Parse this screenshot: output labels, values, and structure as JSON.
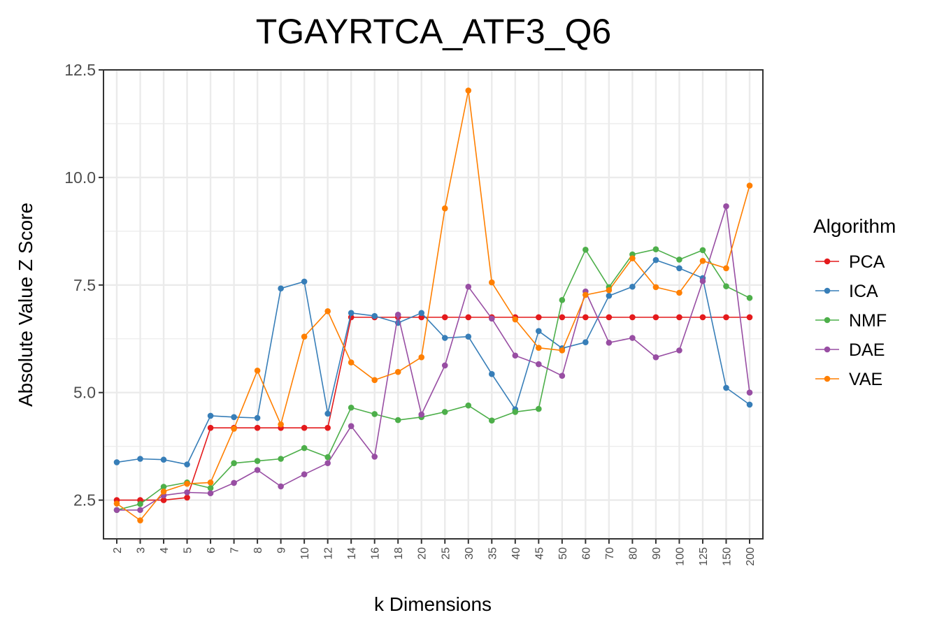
{
  "chart_data": {
    "type": "line",
    "title": "TGAYRTCA_ATF3_Q6",
    "xlabel": "k Dimensions",
    "ylabel": "Absolute Value Z Score",
    "ylim": [
      1.6,
      12.5
    ],
    "yticks": [
      "2.5",
      "5.0",
      "7.5",
      "10.0",
      "12.5"
    ],
    "grid": true,
    "legend_title": "Algorithm",
    "legend_position": "right",
    "categories": [
      "2",
      "3",
      "4",
      "5",
      "6",
      "7",
      "8",
      "9",
      "10",
      "12",
      "14",
      "16",
      "18",
      "20",
      "25",
      "30",
      "35",
      "40",
      "45",
      "50",
      "60",
      "70",
      "80",
      "90",
      "100",
      "125",
      "150",
      "200"
    ],
    "series": [
      {
        "name": "PCA",
        "color": "#E41A1C",
        "values": [
          2.5,
          2.5,
          2.5,
          2.56,
          4.18,
          4.18,
          4.18,
          4.18,
          4.18,
          4.18,
          6.75,
          6.75,
          6.75,
          6.75,
          6.75,
          6.75,
          6.75,
          6.75,
          6.75,
          6.75,
          6.75,
          6.75,
          6.75,
          6.75,
          6.75,
          6.75,
          6.75,
          6.75
        ]
      },
      {
        "name": "ICA",
        "color": "#377EB8",
        "values": [
          3.38,
          3.46,
          3.44,
          3.33,
          4.46,
          4.43,
          4.41,
          7.42,
          7.58,
          4.51,
          6.85,
          6.78,
          6.62,
          6.85,
          6.27,
          6.3,
          5.43,
          4.61,
          6.43,
          6.03,
          6.17,
          7.25,
          7.46,
          8.08,
          7.89,
          7.66,
          5.11,
          4.72
        ]
      },
      {
        "name": "NMF",
        "color": "#4DAF4A",
        "values": [
          2.27,
          2.41,
          2.81,
          2.91,
          2.78,
          3.36,
          3.41,
          3.46,
          3.71,
          3.5,
          4.65,
          4.5,
          4.36,
          4.43,
          4.55,
          4.7,
          4.35,
          4.55,
          4.62,
          7.15,
          8.32,
          7.45,
          8.21,
          8.33,
          8.09,
          8.31,
          7.47,
          7.2
        ]
      },
      {
        "name": "DAE",
        "color": "#984EA3",
        "values": [
          2.27,
          2.27,
          2.61,
          2.68,
          2.66,
          2.9,
          3.2,
          2.82,
          3.1,
          3.36,
          4.22,
          3.51,
          6.81,
          4.49,
          5.63,
          7.46,
          6.72,
          5.86,
          5.66,
          5.39,
          7.35,
          6.16,
          6.27,
          5.82,
          5.98,
          7.59,
          9.33,
          5.0
        ]
      },
      {
        "name": "VAE",
        "color": "#FF7F00",
        "values": [
          2.42,
          2.03,
          2.7,
          2.88,
          2.91,
          4.16,
          5.51,
          4.26,
          6.3,
          6.89,
          5.7,
          5.29,
          5.48,
          5.82,
          9.28,
          12.02,
          7.56,
          6.7,
          6.04,
          5.98,
          7.27,
          7.38,
          8.12,
          7.45,
          7.32,
          8.06,
          7.89,
          9.81
        ]
      }
    ]
  }
}
